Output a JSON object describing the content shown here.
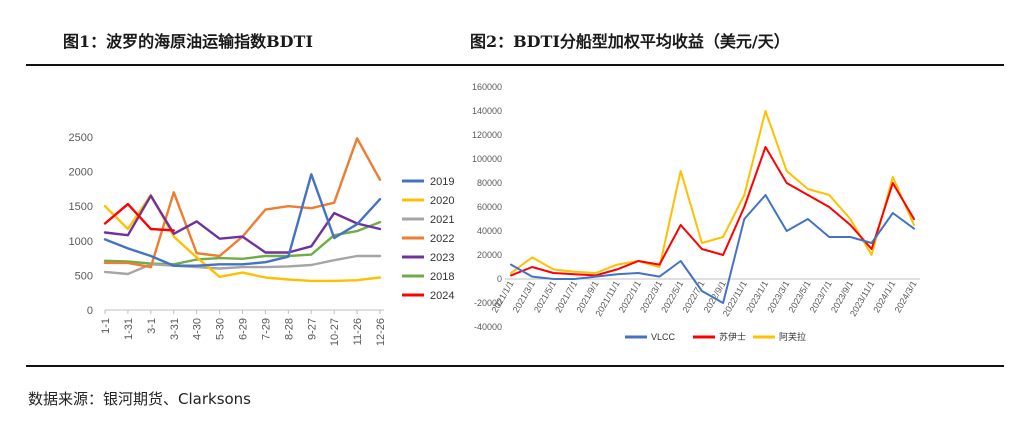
{
  "titles": {
    "fig1": "图1：波罗的海原油运输指数BDTI",
    "fig2": "图2：BDTI分船型加权平均收益（美元/天）"
  },
  "source": "数据来源：银河期货、Clarksons",
  "colors": {
    "2019": "#4472c4",
    "2020": "#ffc000",
    "2021": "#a5a5a5",
    "2022": "#ed7d31",
    "2023": "#7030a0",
    "2018": "#70ad47",
    "2024": "#ff0000",
    "VLCC": "#4472c4",
    "苏伊士": "#ff0000",
    "阿芙拉": "#ffc000"
  },
  "chart_data": [
    {
      "type": "line",
      "title": "图1：波罗的海原油运输指数BDTI",
      "x": [
        "1-1",
        "1-31",
        "3-1",
        "3-31",
        "4-30",
        "5-30",
        "6-29",
        "7-29",
        "8-28",
        "9-27",
        "10-27",
        "11-26",
        "12-26"
      ],
      "yticks": [
        "0",
        "500",
        "1000",
        "1500",
        "2000",
        "2500"
      ],
      "ylim": [
        0,
        2600
      ],
      "series": [
        {
          "name": "2019",
          "values": [
            1020,
            890,
            780,
            640,
            640,
            660,
            660,
            690,
            770,
            1960,
            1040,
            1240,
            1600
          ]
        },
        {
          "name": "2020",
          "values": [
            1500,
            1170,
            1660,
            1060,
            760,
            480,
            540,
            470,
            440,
            420,
            420,
            430,
            470
          ]
        },
        {
          "name": "2021",
          "values": [
            550,
            520,
            660,
            640,
            620,
            600,
            620,
            620,
            630,
            650,
            720,
            780,
            780
          ]
        },
        {
          "name": "2022",
          "values": [
            680,
            680,
            620,
            1700,
            820,
            780,
            1060,
            1450,
            1500,
            1470,
            1550,
            2480,
            1880
          ]
        },
        {
          "name": "2023",
          "values": [
            1120,
            1080,
            1650,
            1100,
            1280,
            1030,
            1060,
            830,
            830,
            920,
            1400,
            1250,
            1170
          ]
        },
        {
          "name": "2018",
          "values": [
            710,
            700,
            670,
            660,
            730,
            750,
            740,
            780,
            780,
            800,
            1080,
            1140,
            1270
          ]
        },
        {
          "name": "2024",
          "values": [
            1250,
            1530,
            1170,
            1150,
            null,
            null,
            null,
            null,
            null,
            null,
            null,
            null,
            null
          ]
        }
      ]
    },
    {
      "type": "line",
      "title": "图2：BDTI分船型加权平均收益（美元/天）",
      "x": [
        "2021/1/1",
        "2021/3/1",
        "2021/5/1",
        "2021/7/1",
        "2021/9/1",
        "2021/11/1",
        "2022/1/1",
        "2022/3/1",
        "2022/5/1",
        "2022/7/1",
        "2022/9/1",
        "2022/11/1",
        "2023/1/1",
        "2023/3/1",
        "2023/5/1",
        "2023/7/1",
        "2023/9/1",
        "2023/11/1",
        "2024/1/1",
        "2024/3/1"
      ],
      "yticks": [
        "-40000",
        "-20000",
        "0",
        "20000",
        "40000",
        "60000",
        "80000",
        "100000",
        "120000",
        "140000",
        "160000"
      ],
      "ylim": [
        -40000,
        160000
      ],
      "series": [
        {
          "name": "VLCC",
          "values": [
            12000,
            2000,
            0,
            0,
            2000,
            4000,
            5000,
            2000,
            15000,
            -10000,
            -20000,
            50000,
            70000,
            40000,
            50000,
            35000,
            35000,
            30000,
            55000,
            42000
          ]
        },
        {
          "name": "苏伊士",
          "values": [
            3000,
            10000,
            5000,
            4000,
            3000,
            8000,
            15000,
            12000,
            45000,
            25000,
            20000,
            60000,
            110000,
            80000,
            70000,
            60000,
            45000,
            25000,
            80000,
            50000
          ]
        },
        {
          "name": "阿芙拉",
          "values": [
            5000,
            18000,
            8000,
            6000,
            5000,
            12000,
            15000,
            10000,
            90000,
            30000,
            35000,
            70000,
            140000,
            90000,
            75000,
            70000,
            50000,
            20000,
            85000,
            45000
          ]
        }
      ]
    }
  ]
}
